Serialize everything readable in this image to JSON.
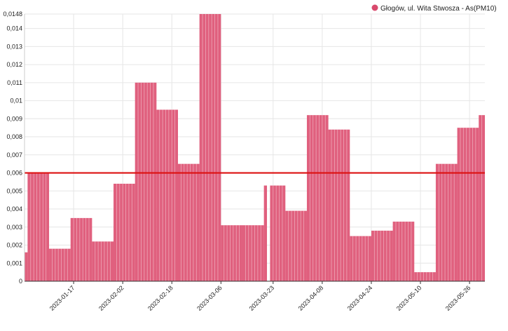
{
  "chart_data": {
    "type": "bar",
    "title": "",
    "xlabel": "",
    "ylabel": "",
    "ylim": [
      0,
      0.0148
    ],
    "y_ticks": [
      "0",
      "0,001",
      "0,002",
      "0,003",
      "0,004",
      "0,005",
      "0,006",
      "0,007",
      "0,008",
      "0,009",
      "0,01",
      "0,011",
      "0,012",
      "0,013",
      "0,014",
      "0,0148"
    ],
    "y_tick_values": [
      0,
      0.001,
      0.002,
      0.003,
      0.004,
      0.005,
      0.006,
      0.007,
      0.008,
      0.009,
      0.01,
      0.011,
      0.012,
      0.013,
      0.014,
      0.0148
    ],
    "x_range": [
      "2023-01-01",
      "2023-05-31"
    ],
    "x_ticks": [
      "2023-01-17",
      "2023-02-02",
      "2023-02-18",
      "2023-03-06",
      "2023-03-23",
      "2023-04-08",
      "2023-04-24",
      "2023-05-10",
      "2023-05-26"
    ],
    "grid": true,
    "legend_position": "top-right",
    "series": [
      {
        "name": "Głogów, ul. Wita Stwosza - As(PM10)",
        "color": "#e0607e",
        "segments": [
          {
            "start": "2023-01-01",
            "end": "2023-01-02",
            "value": 0.0016
          },
          {
            "start": "2023-01-02",
            "end": "2023-01-09",
            "value": 0.006
          },
          {
            "start": "2023-01-09",
            "end": "2023-01-16",
            "value": 0.0018
          },
          {
            "start": "2023-01-16",
            "end": "2023-01-23",
            "value": 0.0035
          },
          {
            "start": "2023-01-23",
            "end": "2023-01-30",
            "value": 0.0022
          },
          {
            "start": "2023-01-30",
            "end": "2023-02-06",
            "value": 0.0054
          },
          {
            "start": "2023-02-06",
            "end": "2023-02-13",
            "value": 0.011
          },
          {
            "start": "2023-02-13",
            "end": "2023-02-20",
            "value": 0.0095
          },
          {
            "start": "2023-02-20",
            "end": "2023-02-27",
            "value": 0.0065
          },
          {
            "start": "2023-02-27",
            "end": "2023-03-06",
            "value": 0.0148
          },
          {
            "start": "2023-03-06",
            "end": "2023-03-13",
            "value": 0.0031
          },
          {
            "start": "2023-03-13",
            "end": "2023-03-20",
            "value": 0.0031
          },
          {
            "start": "2023-03-20",
            "end": "2023-03-21",
            "value": 0.0053
          },
          {
            "start": "2023-03-22",
            "end": "2023-03-27",
            "value": 0.0053
          },
          {
            "start": "2023-03-27",
            "end": "2023-04-03",
            "value": 0.0039
          },
          {
            "start": "2023-04-03",
            "end": "2023-04-10",
            "value": 0.0092
          },
          {
            "start": "2023-04-10",
            "end": "2023-04-17",
            "value": 0.0084
          },
          {
            "start": "2023-04-17",
            "end": "2023-04-24",
            "value": 0.0025
          },
          {
            "start": "2023-04-24",
            "end": "2023-05-01",
            "value": 0.0028
          },
          {
            "start": "2023-05-01",
            "end": "2023-05-08",
            "value": 0.0033
          },
          {
            "start": "2023-05-08",
            "end": "2023-05-15",
            "value": 0.0005
          },
          {
            "start": "2023-05-15",
            "end": "2023-05-22",
            "value": 0.0065
          },
          {
            "start": "2023-05-22",
            "end": "2023-05-29",
            "value": 0.0085
          },
          {
            "start": "2023-05-29",
            "end": "2023-05-31",
            "value": 0.0092
          }
        ]
      }
    ],
    "threshold": {
      "value": 0.006,
      "color": "#dd1111"
    }
  }
}
